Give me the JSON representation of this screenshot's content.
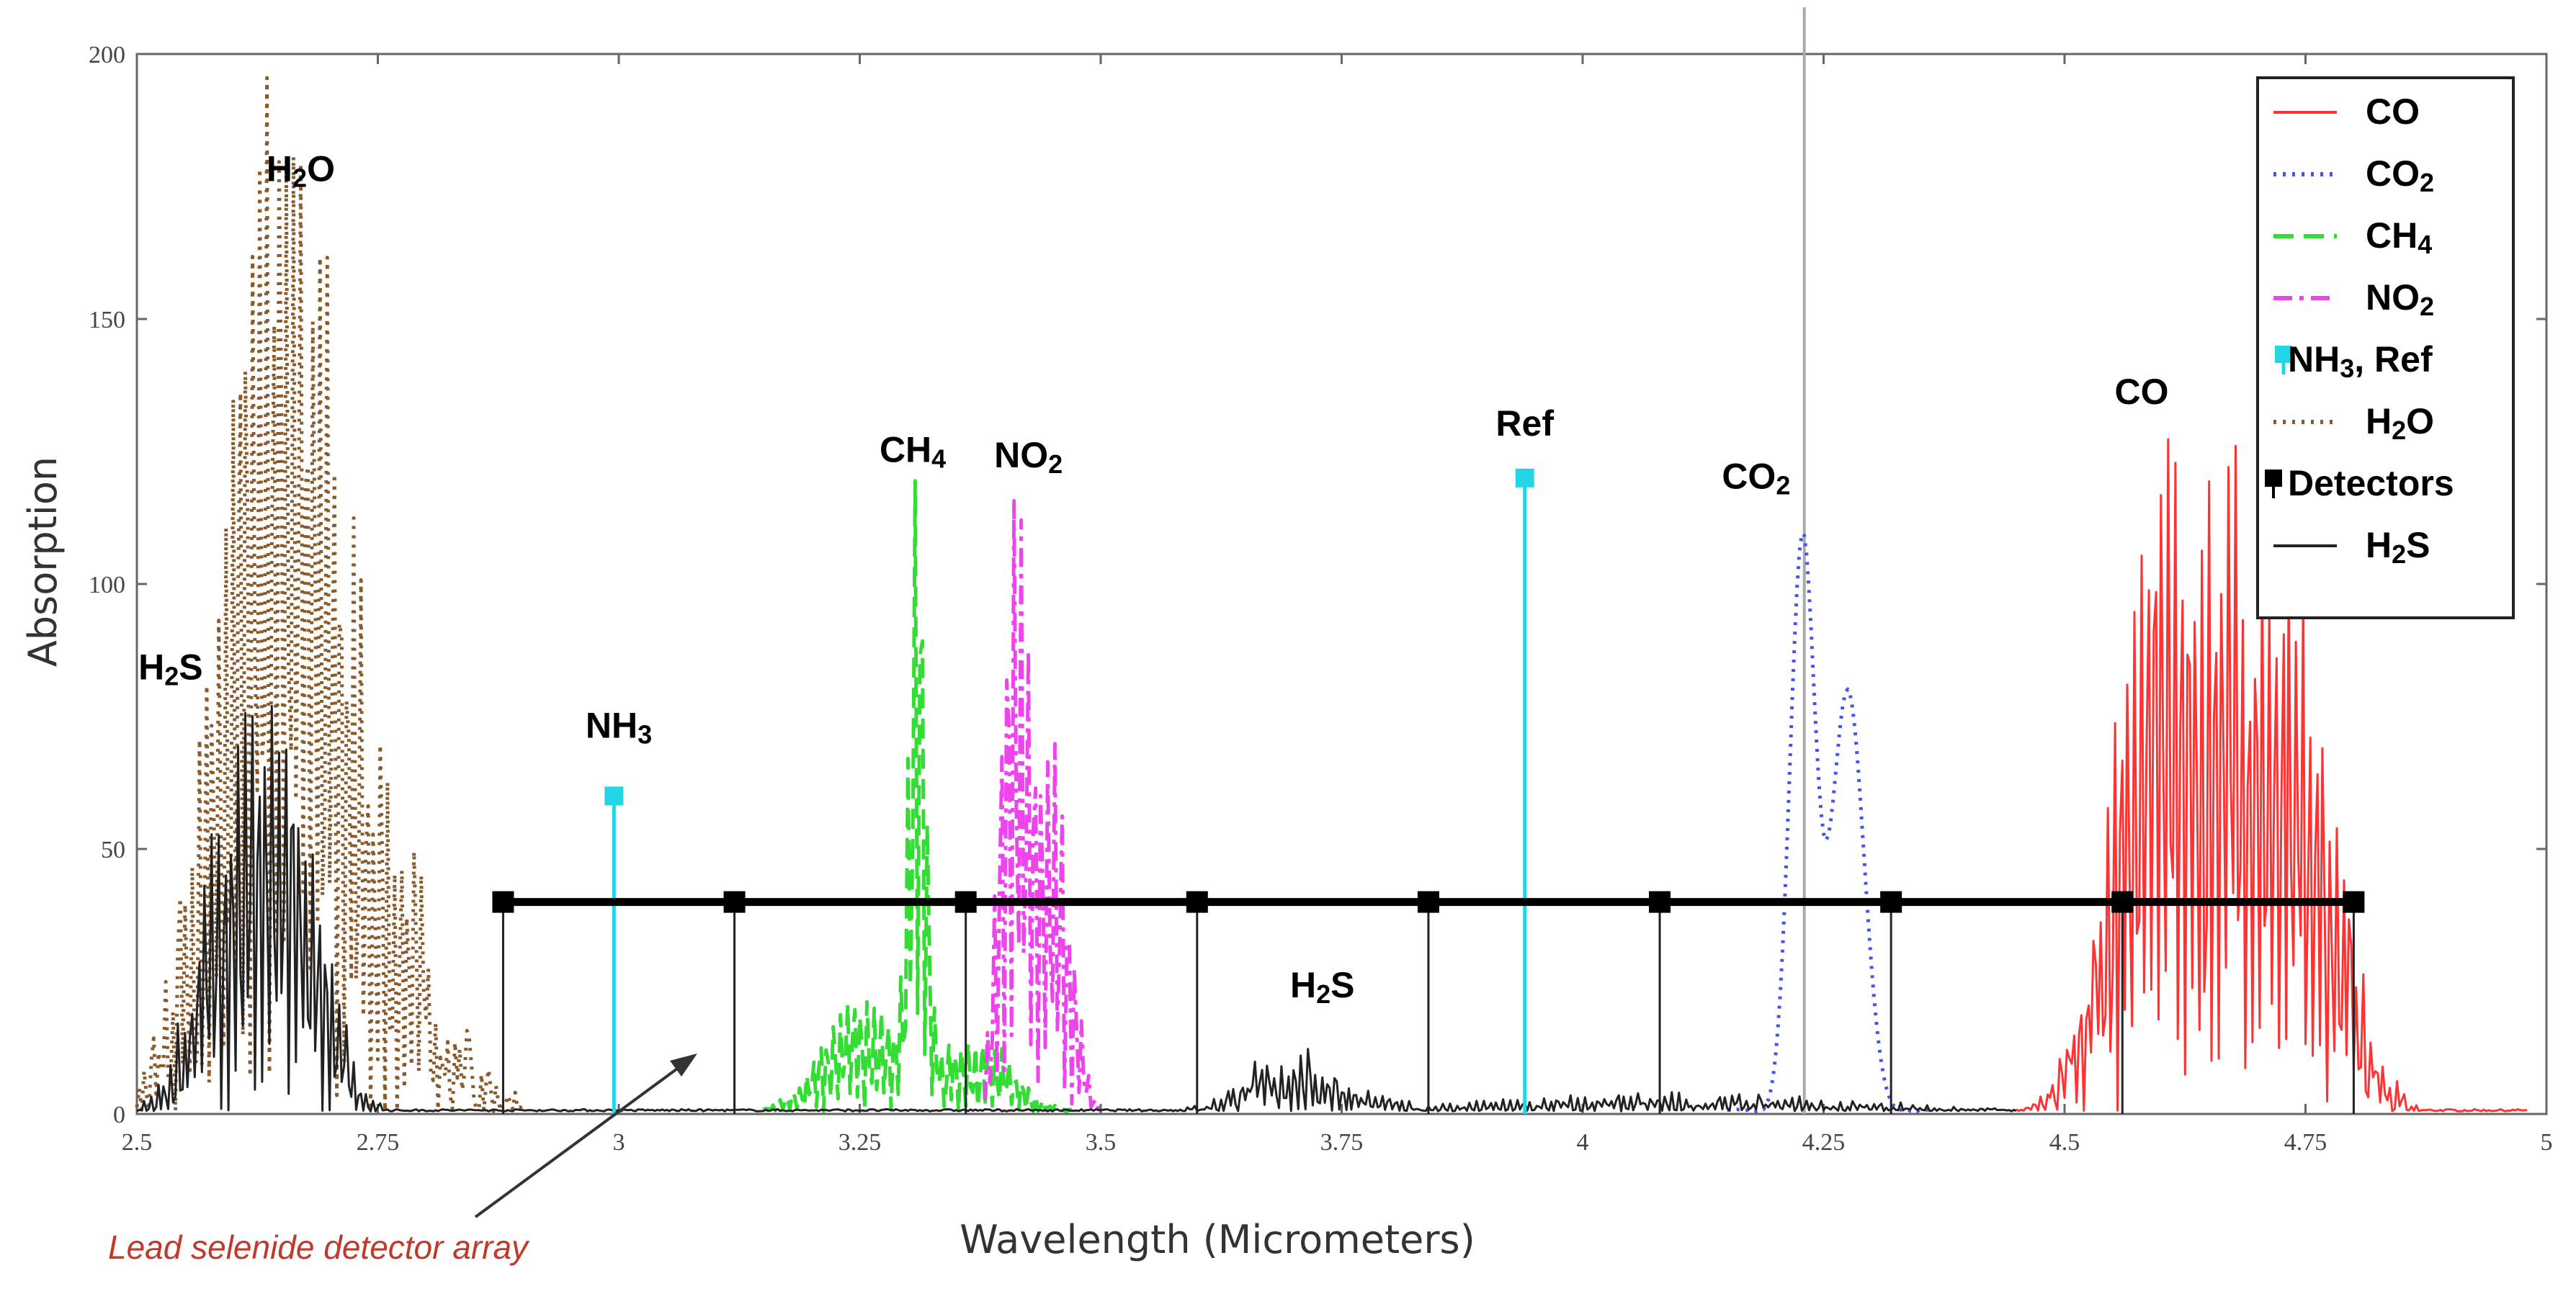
{
  "chart_data": {
    "type": "line",
    "xlabel": "Wavelength (Micrometers)",
    "ylabel": "Absorption",
    "xlim": [
      2.5,
      5
    ],
    "ylim": [
      0,
      200
    ],
    "xticks": [
      "2.5",
      "2.75",
      "3",
      "3.25",
      "3.5",
      "3.75",
      "4",
      "4.25",
      "4.5",
      "4.75",
      "5"
    ],
    "xtick_values": [
      2.5,
      2.75,
      3,
      3.25,
      3.5,
      3.75,
      4,
      4.25,
      4.5,
      4.75,
      5
    ],
    "yticks": [
      "0",
      "50",
      "100",
      "150",
      "200"
    ],
    "ytick_values": [
      0,
      50,
      100,
      150,
      200
    ],
    "vline_x": 4.23,
    "series": [
      {
        "name": "CO",
        "color": "#ff3333",
        "style": "solid",
        "bands": [
          {
            "center": 4.6,
            "width": 0.045,
            "peak": 122
          },
          {
            "center": 4.73,
            "width": 0.045,
            "peak": 100
          },
          {
            "center": 4.67,
            "width": 0.02,
            "peak": 40
          }
        ],
        "modulation": 30,
        "min_x": 4.45,
        "max_x": 4.98
      },
      {
        "name": "CO₂",
        "color": "#4455ee",
        "style": "dotted",
        "bands": [
          {
            "center": 4.228,
            "width": 0.013,
            "peak": 108
          },
          {
            "center": 4.275,
            "width": 0.017,
            "peak": 80
          }
        ],
        "modulation": 0,
        "min_x": 4.15,
        "max_x": 4.36
      },
      {
        "name": "CH₄",
        "color": "#33dd33",
        "style": "dashed",
        "bands": [
          {
            "center": 3.31,
            "width": 0.008,
            "peak": 118
          },
          {
            "center": 3.25,
            "width": 0.04,
            "peak": 22
          },
          {
            "center": 3.37,
            "width": 0.04,
            "peak": 14
          }
        ],
        "modulation": 8,
        "min_x": 3.15,
        "max_x": 3.47
      },
      {
        "name": "NO₂",
        "color": "#ee44ee",
        "style": "dashdot",
        "bands": [
          {
            "center": 3.41,
            "width": 0.014,
            "peak": 114
          },
          {
            "center": 3.45,
            "width": 0.018,
            "peak": 68
          }
        ],
        "modulation": 6,
        "min_x": 3.38,
        "max_x": 3.5
      },
      {
        "name": "H₂O",
        "color": "#8b5a2b",
        "style": "dotted",
        "bands": [
          {
            "center": 2.6,
            "width": 0.04,
            "peak": 100
          },
          {
            "center": 2.66,
            "width": 0.035,
            "peak": 110
          },
          {
            "center": 2.7,
            "width": 0.05,
            "peak": 70
          },
          {
            "center": 2.78,
            "width": 0.05,
            "peak": 25
          }
        ],
        "modulation": 45,
        "min_x": 2.5,
        "max_x": 2.9
      },
      {
        "name": "H₂S",
        "color": "#222222",
        "style": "solid",
        "bands": [
          {
            "center": 2.6,
            "width": 0.035,
            "peak": 55
          },
          {
            "center": 2.66,
            "width": 0.035,
            "peak": 52
          },
          {
            "center": 3.7,
            "width": 0.05,
            "peak": 10
          },
          {
            "center": 4.1,
            "width": 0.2,
            "peak": 3
          }
        ],
        "modulation": 20,
        "min_x": 2.5,
        "max_x": 4.45
      }
    ],
    "stems": [
      {
        "label": "NH₃",
        "x": 2.995,
        "y": 60,
        "color": "#22d6e6"
      },
      {
        "label": "Ref",
        "x": 3.94,
        "y": 120,
        "color": "#22d6e6"
      }
    ],
    "detectors": {
      "label": "Detectors",
      "y": 40,
      "x": [
        2.88,
        3.12,
        3.36,
        3.6,
        3.84,
        4.08,
        4.32,
        4.56,
        4.8
      ]
    },
    "annotations": [
      {
        "text": "H₂O",
        "x": 2.67,
        "y": 176
      },
      {
        "text": "H₂S",
        "x": 2.535,
        "y": 82
      },
      {
        "text": "NH₃",
        "x": 3.0,
        "y": 71
      },
      {
        "text": "CH₄",
        "x": 3.305,
        "y": 123
      },
      {
        "text": "NO₂",
        "x": 3.425,
        "y": 122
      },
      {
        "text": "Ref",
        "x": 3.94,
        "y": 128
      },
      {
        "text": "CO₂",
        "x": 4.18,
        "y": 118
      },
      {
        "text": "H₂S",
        "x": 3.73,
        "y": 22
      },
      {
        "text": "CO",
        "x": 4.58,
        "y": 134
      }
    ],
    "legend": {
      "position": "top-right",
      "entries": [
        "CO",
        "CO₂",
        "CH₄",
        "NO₂",
        "NH₃, Ref",
        "H₂O",
        "Detectors",
        "H₂S"
      ]
    },
    "note": "Lead selenide detector array"
  }
}
